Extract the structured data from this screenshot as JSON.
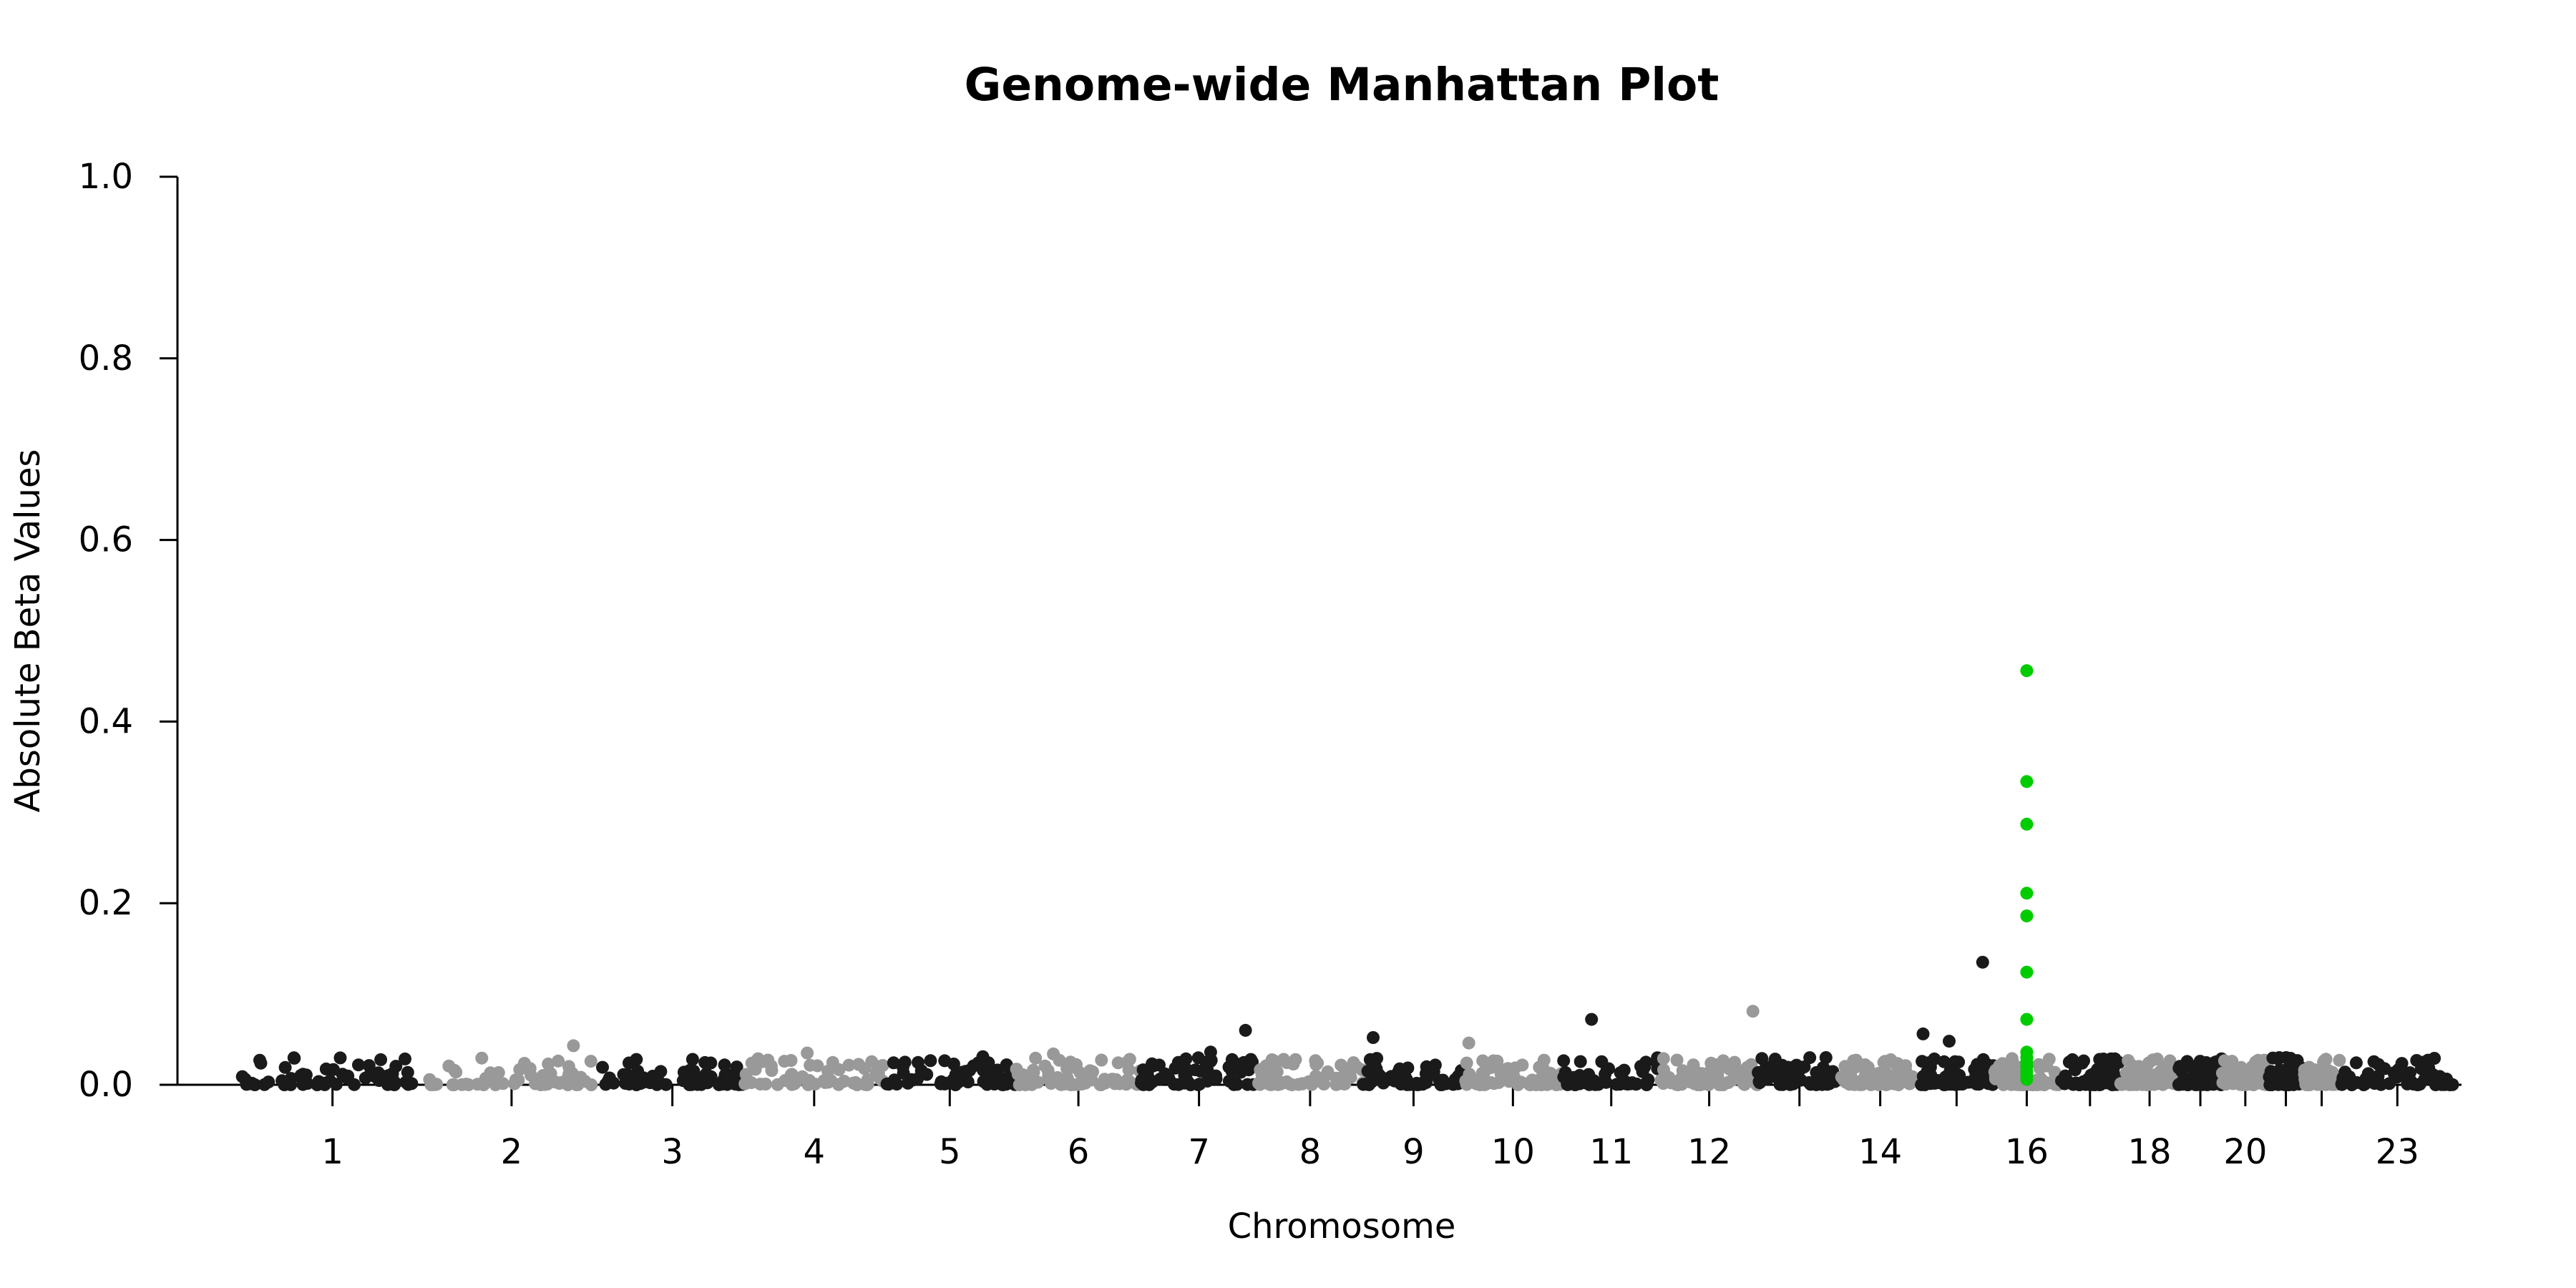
{
  "chart_data": {
    "type": "scatter",
    "title": "Genome-wide Manhattan Plot",
    "xlabel": "Chromosome",
    "ylabel": "Absolute Beta Values",
    "ylim": [
      0,
      1
    ],
    "yticks": [
      "0.0",
      "0.2",
      "0.4",
      "0.6",
      "0.8",
      "1.0"
    ],
    "yticks_values": [
      0,
      0.2,
      0.4,
      0.6,
      0.8,
      1.0
    ],
    "chromosomes": [
      {
        "id": "1",
        "label": "1",
        "weight": 248
      },
      {
        "id": "2",
        "label": "2",
        "weight": 242
      },
      {
        "id": "3",
        "label": "3",
        "weight": 198
      },
      {
        "id": "4",
        "label": "4",
        "weight": 190
      },
      {
        "id": "5",
        "label": "5",
        "weight": 181
      },
      {
        "id": "6",
        "label": "6",
        "weight": 171
      },
      {
        "id": "7",
        "label": "7",
        "weight": 159
      },
      {
        "id": "8",
        "label": "8",
        "weight": 145
      },
      {
        "id": "9",
        "label": "9",
        "weight": 138
      },
      {
        "id": "10",
        "label": "10",
        "weight": 134
      },
      {
        "id": "11",
        "label": "11",
        "weight": 135
      },
      {
        "id": "12",
        "label": "12",
        "weight": 133
      },
      {
        "id": "13",
        "label": "",
        "weight": 114
      },
      {
        "id": "14",
        "label": "14",
        "weight": 107
      },
      {
        "id": "15",
        "label": "",
        "weight": 102
      },
      {
        "id": "16",
        "label": "16",
        "weight": 90
      },
      {
        "id": "17",
        "label": "",
        "weight": 83
      },
      {
        "id": "18",
        "label": "18",
        "weight": 80
      },
      {
        "id": "19",
        "label": "",
        "weight": 59
      },
      {
        "id": "20",
        "label": "20",
        "weight": 64
      },
      {
        "id": "21",
        "label": "",
        "weight": 47
      },
      {
        "id": "22",
        "label": "",
        "weight": 51
      },
      {
        "id": "23",
        "label": "23",
        "weight": 156
      }
    ],
    "colors": {
      "odd": "#1a1a1a",
      "even": "#999999",
      "highlight": "#00cc00"
    },
    "highlight_series": {
      "chromosome": "16",
      "values": [
        0.456,
        0.334,
        0.287,
        0.211,
        0.186,
        0.124,
        0.072,
        0.036,
        0.03,
        0.025,
        0.02,
        0.015,
        0.01,
        0.006
      ]
    },
    "notable_points": [
      {
        "chromosome": "2",
        "position": 0.85,
        "value": 0.043
      },
      {
        "chromosome": "3",
        "position": 0.2,
        "value": 0.024
      },
      {
        "chromosome": "4",
        "position": 0.45,
        "value": 0.035
      },
      {
        "chromosome": "5",
        "position": 0.75,
        "value": 0.031
      },
      {
        "chromosome": "6",
        "position": 0.3,
        "value": 0.034
      },
      {
        "chromosome": "7",
        "position": 0.9,
        "value": 0.06
      },
      {
        "chromosome": "7",
        "position": 0.6,
        "value": 0.036
      },
      {
        "chromosome": "9",
        "position": 0.1,
        "value": 0.052
      },
      {
        "chromosome": "10",
        "position": 0.05,
        "value": 0.046
      },
      {
        "chromosome": "11",
        "position": 0.3,
        "value": 0.072
      },
      {
        "chromosome": "12",
        "position": 0.95,
        "value": 0.081
      },
      {
        "chromosome": "15",
        "position": 0.05,
        "value": 0.056
      },
      {
        "chromosome": "15",
        "position": 0.4,
        "value": 0.048
      },
      {
        "chromosome": "15",
        "position": 0.85,
        "value": 0.135
      }
    ],
    "background": {
      "points_per_chromosome": 60,
      "max_value": 0.03,
      "seed": 42
    }
  }
}
